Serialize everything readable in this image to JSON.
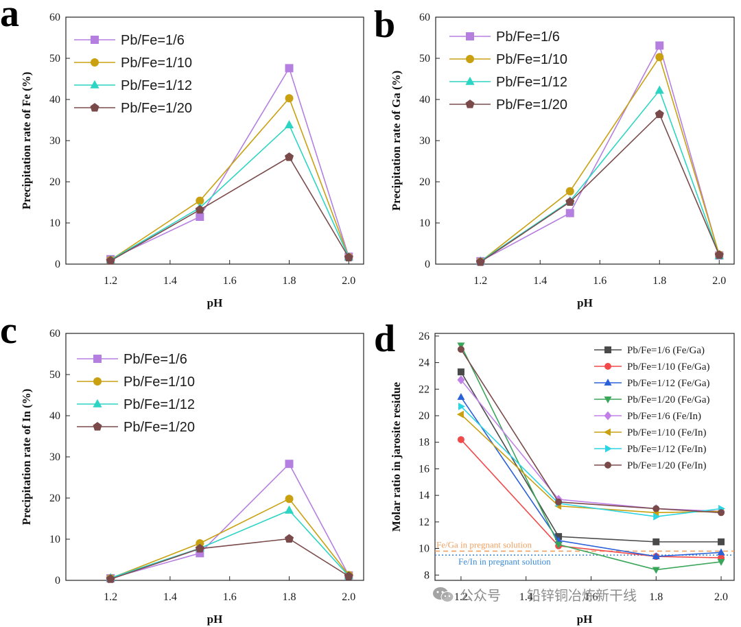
{
  "chart_data": [
    {
      "panel": "a",
      "type": "line",
      "xlabel": "pH",
      "ylabel": "Precipitation rate of Fe (%)",
      "x": [
        1.2,
        1.5,
        1.8,
        2.0
      ],
      "xlim": [
        1.05,
        2.05
      ],
      "xticks": [
        "1.2",
        "1.4",
        "1.6",
        "1.8",
        "2.0"
      ],
      "ylim": [
        0,
        60
      ],
      "yticks": [
        "0",
        "10",
        "20",
        "30",
        "40",
        "50",
        "60"
      ],
      "legend_position": "top-left",
      "series": [
        {
          "name": "Pb/Fe=1/6",
          "color": "#b57fe0",
          "marker": "square",
          "values": [
            1.2,
            11.5,
            47.6,
            1.8
          ]
        },
        {
          "name": "Pb/Fe=1/10",
          "color": "#c9a010",
          "marker": "circle",
          "values": [
            1.0,
            15.4,
            40.3,
            1.7
          ]
        },
        {
          "name": "Pb/Fe=1/12",
          "color": "#2cd4c4",
          "marker": "triangle-up",
          "values": [
            1.0,
            13.7,
            33.8,
            1.7
          ]
        },
        {
          "name": "Pb/Fe=1/20",
          "color": "#7a4a4a",
          "marker": "pentagon",
          "values": [
            0.8,
            13.2,
            26.0,
            1.6
          ]
        }
      ]
    },
    {
      "panel": "b",
      "type": "line",
      "xlabel": "pH",
      "ylabel": "Precipitation rate of Ga (%)",
      "x": [
        1.2,
        1.5,
        1.8,
        2.0
      ],
      "xlim": [
        1.05,
        2.05
      ],
      "xticks": [
        "1.2",
        "1.4",
        "1.6",
        "1.8",
        "2.0"
      ],
      "ylim": [
        0,
        60
      ],
      "yticks": [
        "0",
        "10",
        "20",
        "30",
        "40",
        "50",
        "60"
      ],
      "legend_position": "top-left",
      "series": [
        {
          "name": "Pb/Fe=1/6",
          "color": "#b57fe0",
          "marker": "square",
          "values": [
            0.7,
            12.4,
            53.1,
            2.1
          ]
        },
        {
          "name": "Pb/Fe=1/10",
          "color": "#c9a010",
          "marker": "circle",
          "values": [
            0.6,
            17.7,
            50.3,
            2.3
          ]
        },
        {
          "name": "Pb/Fe=1/12",
          "color": "#2cd4c4",
          "marker": "triangle-up",
          "values": [
            0.7,
            15.3,
            42.2,
            2.0
          ]
        },
        {
          "name": "Pb/Fe=1/20",
          "color": "#7a4a4a",
          "marker": "pentagon",
          "values": [
            0.5,
            15.1,
            36.4,
            2.2
          ]
        }
      ]
    },
    {
      "panel": "c",
      "type": "line",
      "xlabel": "pH",
      "ylabel": "Precipitation rate of In (%)",
      "x": [
        1.2,
        1.5,
        1.8,
        2.0
      ],
      "xlim": [
        1.05,
        2.05
      ],
      "xticks": [
        "1.2",
        "1.4",
        "1.6",
        "1.8",
        "2.0"
      ],
      "ylim": [
        0,
        60
      ],
      "yticks": [
        "0",
        "10",
        "20",
        "30",
        "40",
        "50",
        "60"
      ],
      "legend_position": "top-left",
      "series": [
        {
          "name": "Pb/Fe=1/6",
          "color": "#b57fe0",
          "marker": "square",
          "values": [
            0.5,
            6.6,
            28.3,
            1.2
          ]
        },
        {
          "name": "Pb/Fe=1/10",
          "color": "#c9a010",
          "marker": "circle",
          "values": [
            0.5,
            9.0,
            19.8,
            1.3
          ]
        },
        {
          "name": "Pb/Fe=1/12",
          "color": "#2cd4c4",
          "marker": "triangle-up",
          "values": [
            0.6,
            7.8,
            17.0,
            1.1
          ]
        },
        {
          "name": "Pb/Fe=1/20",
          "color": "#7a4a4a",
          "marker": "pentagon",
          "values": [
            0.3,
            7.7,
            10.1,
            1.0
          ]
        }
      ]
    },
    {
      "panel": "d",
      "type": "line",
      "xlabel": "pH",
      "ylabel": "Molar ratio in jarosite residue",
      "x": [
        1.2,
        1.5,
        1.8,
        2.0
      ],
      "xlim": [
        1.12,
        2.04
      ],
      "xticks": [
        "1.2",
        "1.4",
        "1.6",
        "1.8",
        "2.0"
      ],
      "ylim": [
        7.6,
        26.2
      ],
      "yticks": [
        "8",
        "10",
        "12",
        "14",
        "16",
        "18",
        "20",
        "22",
        "24",
        "26"
      ],
      "legend_position": "top-right",
      "reference_lines": [
        {
          "label": "Fe/Ga in pregnant solution",
          "value": 9.8,
          "color": "#f0a060",
          "style": "dashed"
        },
        {
          "label": "Fe/In in pregnant solution",
          "value": 9.5,
          "color": "#3a8ad8",
          "style": "dotted"
        }
      ],
      "series": [
        {
          "name": "Pb/Fe=1/6 (Fe/Ga)",
          "color": "#4a4a4a",
          "marker": "square",
          "values": [
            23.3,
            10.9,
            10.5,
            10.5
          ]
        },
        {
          "name": "Pb/Fe=1/10 (Fe/Ga)",
          "color": "#f04a4a",
          "marker": "circle",
          "values": [
            18.2,
            10.2,
            9.4,
            9.3
          ]
        },
        {
          "name": "Pb/Fe=1/12 (Fe/Ga)",
          "color": "#2a60d8",
          "marker": "triangle-up",
          "values": [
            21.4,
            10.6,
            9.4,
            9.7
          ]
        },
        {
          "name": "Pb/Fe=1/20 (Fe/Ga)",
          "color": "#3aa65a",
          "marker": "triangle-down",
          "values": [
            25.3,
            10.3,
            8.4,
            9.0
          ]
        },
        {
          "name": "Pb/Fe=1/6 (Fe/In)",
          "color": "#c080e8",
          "marker": "diamond",
          "values": [
            22.7,
            13.7,
            13.0,
            12.8
          ]
        },
        {
          "name": "Pb/Fe=1/10 (Fe/In)",
          "color": "#c9a010",
          "marker": "triangle-left",
          "values": [
            20.1,
            13.2,
            12.7,
            12.8
          ]
        },
        {
          "name": "Pb/Fe=1/12 (Fe/In)",
          "color": "#2cd4e4",
          "marker": "triangle-right",
          "values": [
            20.7,
            13.4,
            12.4,
            13.0
          ]
        },
        {
          "name": "Pb/Fe=1/20 (Fe/In)",
          "color": "#7a4a4a",
          "marker": "circle",
          "values": [
            25.0,
            13.5,
            13.0,
            12.7
          ]
        }
      ]
    }
  ],
  "watermark": {
    "icon": "wechat-icon",
    "part1": "公众号",
    "part2": "铅锌铜冶炼新干线"
  }
}
